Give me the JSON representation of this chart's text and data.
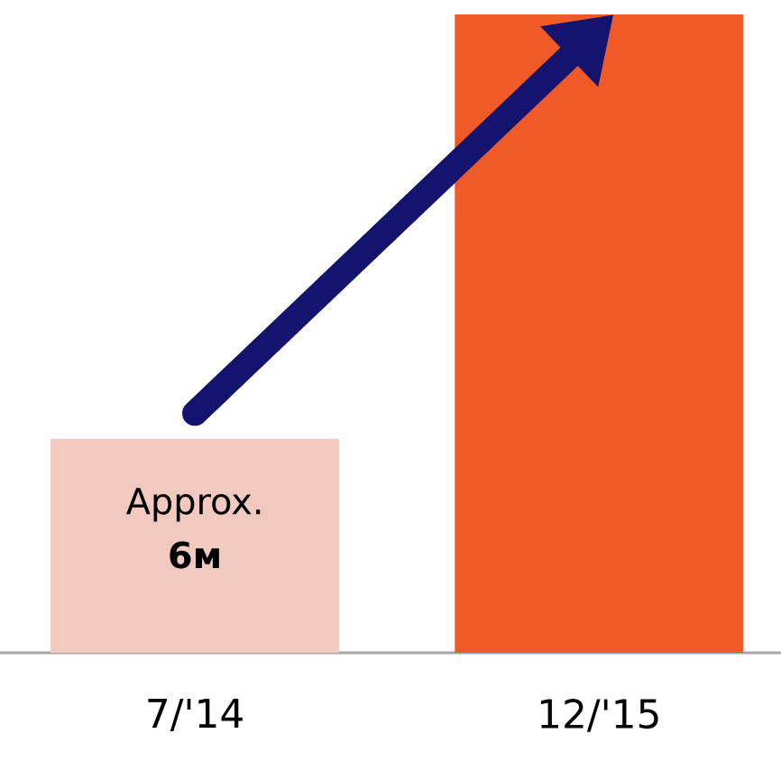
{
  "chart_data": {
    "type": "bar",
    "categories": [
      "7/'14",
      "12/'15"
    ],
    "values": [
      6,
      17.9
    ],
    "colors": [
      "#f2c9bf",
      "#f05a28"
    ],
    "value_labels": [
      "Approx. **6м**",
      null
    ]
  }
}
